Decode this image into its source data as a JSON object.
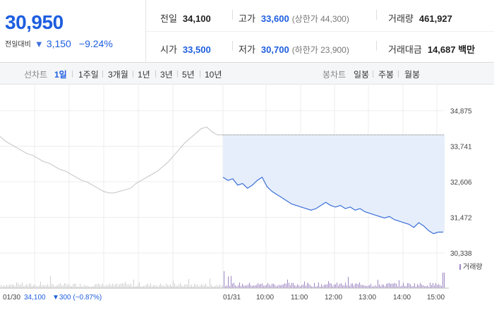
{
  "quote": {
    "price": "30,950",
    "diff_label": "전일대비",
    "diff_arrow": "▼",
    "diff_value": "3,150",
    "diff_pct": "−9.24%"
  },
  "stats": {
    "prev_close_label": "전일",
    "prev_close": "34,100",
    "high_label": "고가",
    "high": "33,600",
    "upper_limit": "(상한가 44,300)",
    "volume_label": "거래량",
    "volume": "461,927",
    "open_label": "시가",
    "open": "33,500",
    "low_label": "저가",
    "low": "30,700",
    "lower_limit": "(하한가 23,900)",
    "amount_label": "거래대금",
    "amount": "14,687 백만"
  },
  "tabs": {
    "line_chart_label": "선차트",
    "line_ranges": [
      "1일",
      "1주일",
      "3개월",
      "1년",
      "3년",
      "5년",
      "10년"
    ],
    "active_range": "1일",
    "candle_chart_label": "봉차트",
    "candle_ranges": [
      "일봉",
      "주봉",
      "월봉"
    ]
  },
  "chart_data": {
    "type": "line",
    "y_ticks": [
      "34,875",
      "33,741",
      "32,606",
      "31,472",
      "30,338"
    ],
    "ylim": [
      30338,
      34875
    ],
    "reference_price": 34100,
    "x_ticks": [
      "01/31",
      "10:00",
      "11:00",
      "12:00",
      "13:00",
      "14:00",
      "15:00"
    ],
    "prev_day_label": "01/30",
    "prev_day_close": "34,100",
    "prev_day_change": "▼300 (−0.87%)",
    "volume_legend": "거래량",
    "colors": {
      "today": "#3a6fd8",
      "prev": "#c4c4c4",
      "fill": "#e6eefb",
      "volume": "#9e86c4"
    },
    "prev_day_series": [
      34050,
      33900,
      33800,
      33700,
      33600,
      33500,
      33450,
      33350,
      33250,
      33200,
      33100,
      33000,
      32950,
      32850,
      32750,
      32650,
      32600,
      32500,
      32400,
      32300,
      32250,
      32250,
      32300,
      32350,
      32400,
      32550,
      32650,
      32750,
      32850,
      32950,
      33100,
      33250,
      33450,
      33650,
      33850,
      34000,
      34150,
      34300,
      34350,
      34200,
      34100,
      34100
    ],
    "today_series": [
      32750,
      32650,
      32700,
      32500,
      32550,
      32400,
      32500,
      32650,
      32750,
      32450,
      32300,
      32200,
      32100,
      32000,
      31900,
      31850,
      31800,
      31750,
      31700,
      31750,
      31850,
      31950,
      31850,
      31800,
      31850,
      31750,
      31800,
      31700,
      31750,
      31650,
      31600,
      31550,
      31500,
      31450,
      31500,
      31400,
      31350,
      31300,
      31250,
      31150,
      31300,
      31200,
      31050,
      30950,
      31000,
      31000
    ]
  }
}
